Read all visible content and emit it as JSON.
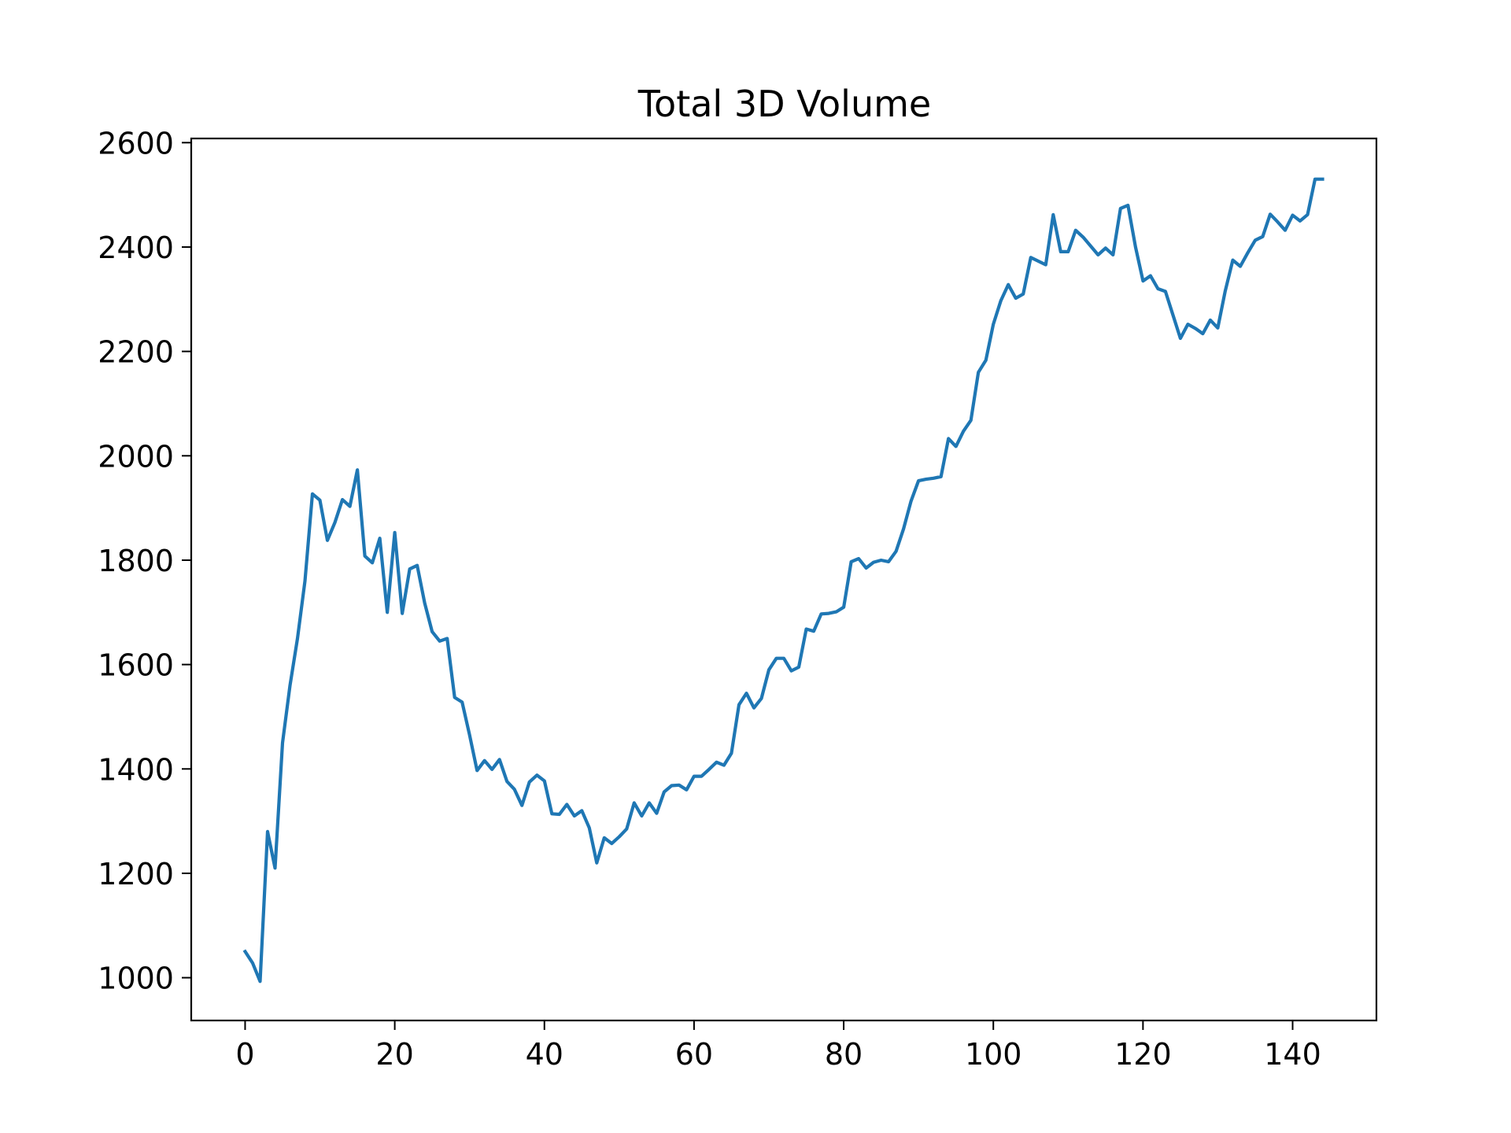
{
  "chart_data": {
    "type": "line",
    "title": "Total 3D Volume",
    "xlabel": "",
    "ylabel": "",
    "xlim": [
      -7.2,
      151.2
    ],
    "ylim": [
      918,
      2608
    ],
    "xticks": [
      0,
      20,
      40,
      60,
      80,
      100,
      120,
      140
    ],
    "yticks": [
      1000,
      1200,
      1400,
      1600,
      1800,
      2000,
      2200,
      2400,
      2600
    ],
    "grid": false,
    "legend": "none",
    "series": [
      {
        "color": "#1f77b4",
        "x": [
          0,
          1,
          2,
          3,
          4,
          5,
          6,
          7,
          8,
          9,
          10,
          11,
          12,
          13,
          14,
          15,
          16,
          17,
          18,
          19,
          20,
          21,
          22,
          23,
          24,
          25,
          26,
          27,
          28,
          29,
          30,
          31,
          32,
          33,
          34,
          35,
          36,
          37,
          38,
          39,
          40,
          41,
          42,
          43,
          44,
          45,
          46,
          47,
          48,
          49,
          50,
          51,
          52,
          53,
          54,
          55,
          56,
          57,
          58,
          59,
          60,
          61,
          62,
          63,
          64,
          65,
          66,
          67,
          68,
          69,
          70,
          71,
          72,
          73,
          74,
          75,
          76,
          77,
          78,
          79,
          80,
          81,
          82,
          83,
          84,
          85,
          86,
          87,
          88,
          89,
          90,
          91,
          92,
          93,
          94,
          95,
          96,
          97,
          98,
          99,
          100,
          101,
          102,
          103,
          104,
          105,
          106,
          107,
          108,
          109,
          110,
          111,
          112,
          113,
          114,
          115,
          116,
          117,
          118,
          119,
          120,
          121,
          122,
          123,
          124,
          125,
          126,
          127,
          128,
          129,
          130,
          131,
          132,
          133,
          134,
          135,
          136,
          137,
          138,
          139,
          140,
          141,
          142,
          143,
          144
        ],
        "y": [
          1050,
          1028,
          993,
          1280,
          1210,
          1450,
          1560,
          1650,
          1760,
          1927,
          1915,
          1838,
          1872,
          1916,
          1903,
          1973,
          1808,
          1795,
          1842,
          1700,
          1853,
          1698,
          1783,
          1790,
          1718,
          1663,
          1645,
          1650,
          1537,
          1528,
          1465,
          1397,
          1416,
          1399,
          1418,
          1376,
          1361,
          1330,
          1375,
          1388,
          1377,
          1314,
          1313,
          1332,
          1310,
          1320,
          1287,
          1220,
          1268,
          1257,
          1270,
          1285,
          1335,
          1310,
          1335,
          1315,
          1356,
          1368,
          1369,
          1360,
          1386,
          1386,
          1399,
          1413,
          1407,
          1430,
          1523,
          1545,
          1517,
          1535,
          1590,
          1612,
          1612,
          1588,
          1595,
          1668,
          1664,
          1697,
          1698,
          1701,
          1710,
          1797,
          1803,
          1785,
          1796,
          1800,
          1797,
          1817,
          1860,
          1913,
          1952,
          1955,
          1957,
          1960,
          2033,
          2018,
          2047,
          2068,
          2160,
          2183,
          2252,
          2297,
          2328,
          2302,
          2310,
          2380,
          2373,
          2366,
          2462,
          2391,
          2391,
          2432,
          2419,
          2402,
          2385,
          2398,
          2385,
          2474,
          2480,
          2400,
          2335,
          2345,
          2320,
          2315,
          2270,
          2225,
          2252,
          2244,
          2234,
          2260,
          2245,
          2316,
          2375,
          2363,
          2389,
          2413,
          2420,
          2463,
          2448,
          2432,
          2461,
          2450,
          2462,
          2530,
          2530
        ]
      }
    ]
  }
}
